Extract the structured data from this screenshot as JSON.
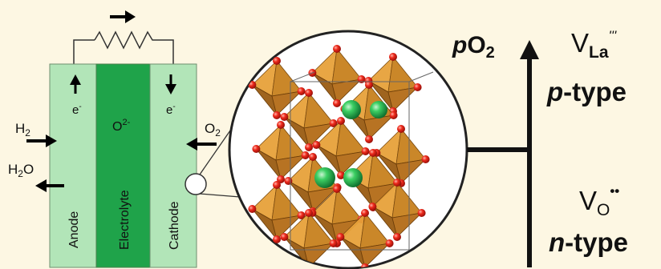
{
  "fuel_cell": {
    "electron_left": "e",
    "electron_left_sup": "-",
    "electron_right": "e",
    "electron_right_sup": "-",
    "oxide_ion": "O",
    "oxide_ion_sup": "2-",
    "anode": "Anode",
    "electrolyte": "Electrolyte",
    "cathode": "Cathode",
    "h2": "H",
    "h2_sub": "2",
    "h2o_h": "H",
    "h2o_sub": "2",
    "h2o_o": "O",
    "o2": "O",
    "o2_sub": "2",
    "colors": {
      "anode": "#b2e5b8",
      "electrolyte": "#1fa34a",
      "cathode": "#b2e5b8"
    }
  },
  "crystal": {
    "description_icon": "perovskite-crystal-structure-icon",
    "colors": {
      "octahedron": "#c7811d",
      "oxygen": "#e8201a",
      "cation": "#22a84a"
    }
  },
  "scale": {
    "axis_p": "p",
    "axis_o": "O",
    "axis_sub": "2",
    "top_defect": "V",
    "top_defect_sub": "La",
    "top_defect_sup": "'''",
    "top_type_prefix": "p",
    "top_type_suffix": "-type",
    "bottom_defect": "V",
    "bottom_defect_sub": "O",
    "bottom_defect_sup": "••",
    "bottom_type_prefix": "n",
    "bottom_type_suffix": "-type"
  }
}
